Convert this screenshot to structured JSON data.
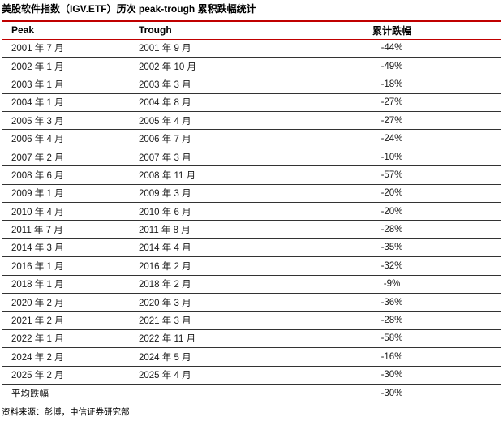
{
  "title": "美股软件指数（IGV.ETF）历次 peak-trough 累积跌幅统计",
  "source": "资料来源：彭博，中信证券研究部",
  "colors": {
    "accent_red": "#c00000",
    "row_line": "#333333",
    "text": "#1a1a1a"
  },
  "chart_data": {
    "type": "table",
    "title": "美股软件指数（IGV.ETF）历次 peak-trough 累积跌幅统计",
    "columns": [
      "Peak",
      "Trough",
      "累计跌幅"
    ],
    "rows": [
      [
        "2001 年 7 月",
        "2001 年 9 月",
        "-44%"
      ],
      [
        "2002 年 1 月",
        "2002 年 10 月",
        "-49%"
      ],
      [
        "2003 年 1 月",
        "2003 年 3 月",
        "-18%"
      ],
      [
        "2004 年 1 月",
        "2004 年 8 月",
        "-27%"
      ],
      [
        "2005 年 3 月",
        "2005 年 4 月",
        "-27%"
      ],
      [
        "2006 年 4 月",
        "2006 年 7 月",
        "-24%"
      ],
      [
        "2007 年 2 月",
        "2007 年 3 月",
        "-10%"
      ],
      [
        "2008 年 6 月",
        "2008 年 11 月",
        "-57%"
      ],
      [
        "2009 年 1 月",
        "2009 年 3 月",
        "-20%"
      ],
      [
        "2010 年 4 月",
        "2010 年 6 月",
        "-20%"
      ],
      [
        "2011 年 7 月",
        "2011 年 8 月",
        "-28%"
      ],
      [
        "2014 年 3 月",
        "2014 年 4 月",
        "-35%"
      ],
      [
        "2016 年 1 月",
        "2016 年 2 月",
        "-32%"
      ],
      [
        "2018 年 1 月",
        "2018 年 2 月",
        "-9%"
      ],
      [
        "2020 年 2 月",
        "2020 年 3 月",
        "-36%"
      ],
      [
        "2021 年 2 月",
        "2021 年 3 月",
        "-28%"
      ],
      [
        "2022 年 1 月",
        "2022 年 11 月",
        "-58%"
      ],
      [
        "2024 年 2 月",
        "2024 年 5 月",
        "-16%"
      ],
      [
        "2025 年 2 月",
        "2025 年 4 月",
        "-30%"
      ],
      [
        "平均跌幅",
        "",
        "-30%"
      ]
    ]
  }
}
